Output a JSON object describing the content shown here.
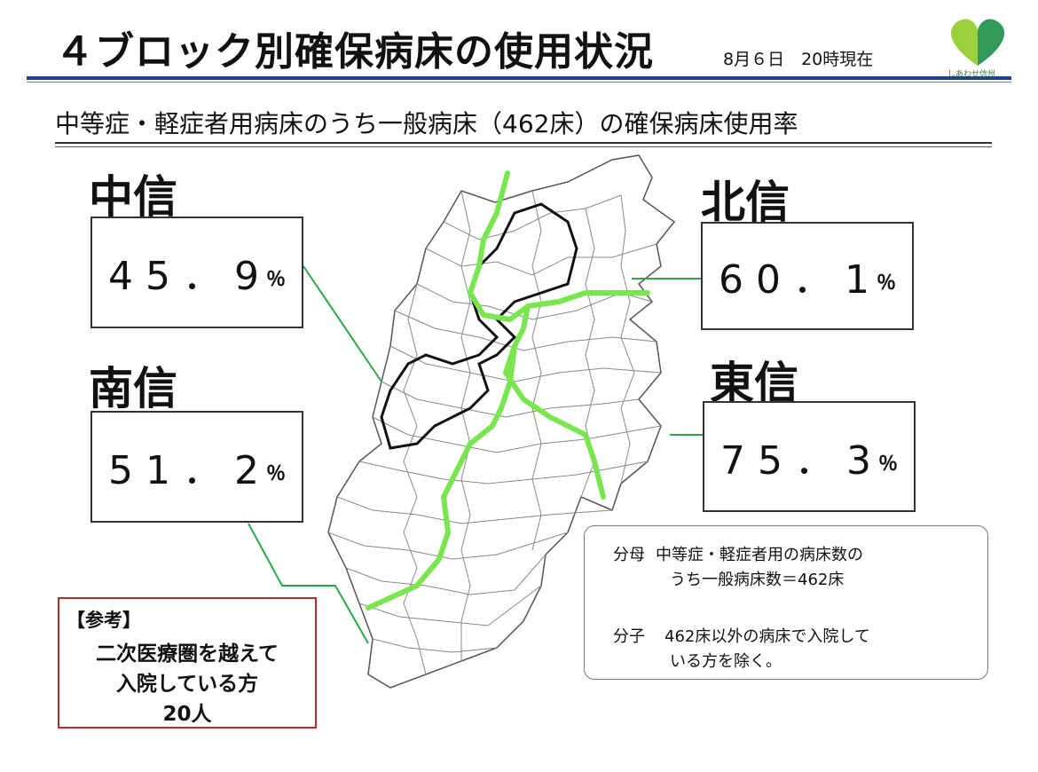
{
  "header": {
    "title": "４ブロック別確保病床の使用状況",
    "datetime": "8月６日　20時現在",
    "logo_caption": "しあわせ信州"
  },
  "subtitle": "中等症・軽症者用病床のうち一般病床（462床）の確保病床使用率",
  "colors": {
    "title_rule": "#1f3f8f",
    "block_boundary": "#79e64f",
    "leader_line": "#2aa84a",
    "reference_border": "#c0282a",
    "logo_green_light": "#9ccf3c",
    "logo_green_dark": "#2f9a5a"
  },
  "regions": [
    {
      "name": "中信",
      "rate": "45．9",
      "unit": "％"
    },
    {
      "name": "北信",
      "rate": "60．1",
      "unit": "％"
    },
    {
      "name": "南信",
      "rate": "51．2",
      "unit": "％"
    },
    {
      "name": "東信",
      "rate": "75．3",
      "unit": "％"
    }
  ],
  "reference": {
    "heading": "【参考】",
    "lines": [
      "二次医療圏を越えて",
      "入院している方",
      "20人"
    ]
  },
  "note": {
    "denominator_label": "分母",
    "denominator_text_1": "中等症・軽症者用の病床数の",
    "denominator_text_2": "うち一般病床数＝462床",
    "numerator_label": "分子",
    "numerator_text_1": "462床以外の病床で入院して",
    "numerator_text_2": "いる方を除く。"
  }
}
